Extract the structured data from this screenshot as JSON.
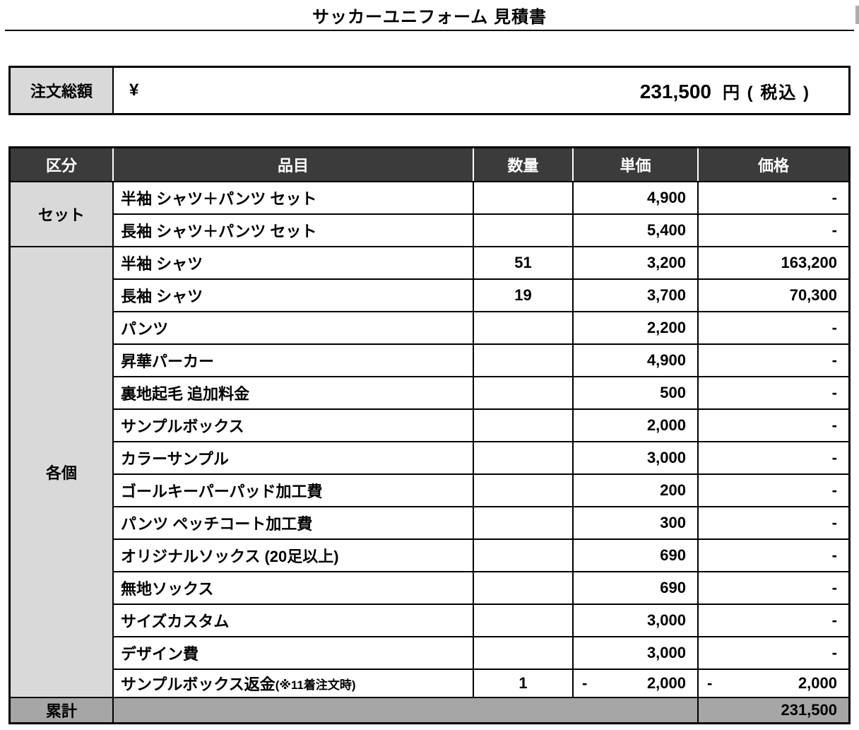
{
  "title": "サッカーユニフォーム 見積書",
  "order_total": {
    "label": "注文総額",
    "currency_symbol": "¥",
    "amount": "231,500",
    "unit": "円 ( 税込 )"
  },
  "table": {
    "headers": {
      "category": "区分",
      "item": "品目",
      "quantity": "数量",
      "unit_price": "単価",
      "price": "価格"
    },
    "groups": [
      {
        "category": "セット",
        "rows": [
          {
            "item": "半袖 シャツ＋パンツ セット",
            "qty": "",
            "unit_price": "4,900",
            "price": "-"
          },
          {
            "item": "長袖 シャツ＋パンツ セット",
            "qty": "",
            "unit_price": "5,400",
            "price": "-"
          }
        ]
      },
      {
        "category": "各個",
        "rows": [
          {
            "item": "半袖 シャツ",
            "qty": "51",
            "unit_price": "3,200",
            "price": "163,200"
          },
          {
            "item": "長袖 シャツ",
            "qty": "19",
            "unit_price": "3,700",
            "price": "70,300"
          },
          {
            "item": "パンツ",
            "qty": "",
            "unit_price": "2,200",
            "price": "-"
          },
          {
            "item": "昇華パーカー",
            "qty": "",
            "unit_price": "4,900",
            "price": "-"
          },
          {
            "item": "裏地起毛 追加料金",
            "qty": "",
            "unit_price": "500",
            "price": "-"
          },
          {
            "item": "サンプルボックス",
            "qty": "",
            "unit_price": "2,000",
            "price": "-"
          },
          {
            "item": "カラーサンプル",
            "qty": "",
            "unit_price": "3,000",
            "price": "-"
          },
          {
            "item": "ゴールキーパーパッド加工費",
            "qty": "",
            "unit_price": "200",
            "price": "-"
          },
          {
            "item": "パンツ ペッチコート加工費",
            "qty": "",
            "unit_price": "300",
            "price": "-"
          },
          {
            "item": "オリジナルソックス (20足以上)",
            "qty": "",
            "unit_price": "690",
            "price": "-"
          },
          {
            "item": "無地ソックス",
            "qty": "",
            "unit_price": "690",
            "price": "-"
          },
          {
            "item": "サイズカスタム",
            "qty": "",
            "unit_price": "3,000",
            "price": "-"
          },
          {
            "item": "デザイン費",
            "qty": "",
            "unit_price": "3,000",
            "price": "-"
          },
          {
            "item": "サンプルボックス返金",
            "item_note": "(※11着注文時)",
            "qty": "1",
            "unit_price_minus": "-",
            "unit_price": "2,000",
            "price_minus": "-",
            "price": "2,000",
            "compact": true
          }
        ]
      }
    ],
    "total_row": {
      "label": "累計",
      "price": "231,500"
    }
  },
  "colors": {
    "header_bg": "#3B3B3B",
    "header_text": "#FFFFFF",
    "category_bg": "#D9D9D9",
    "total_row_bg": "#A6A6A6",
    "border": "#000000"
  }
}
